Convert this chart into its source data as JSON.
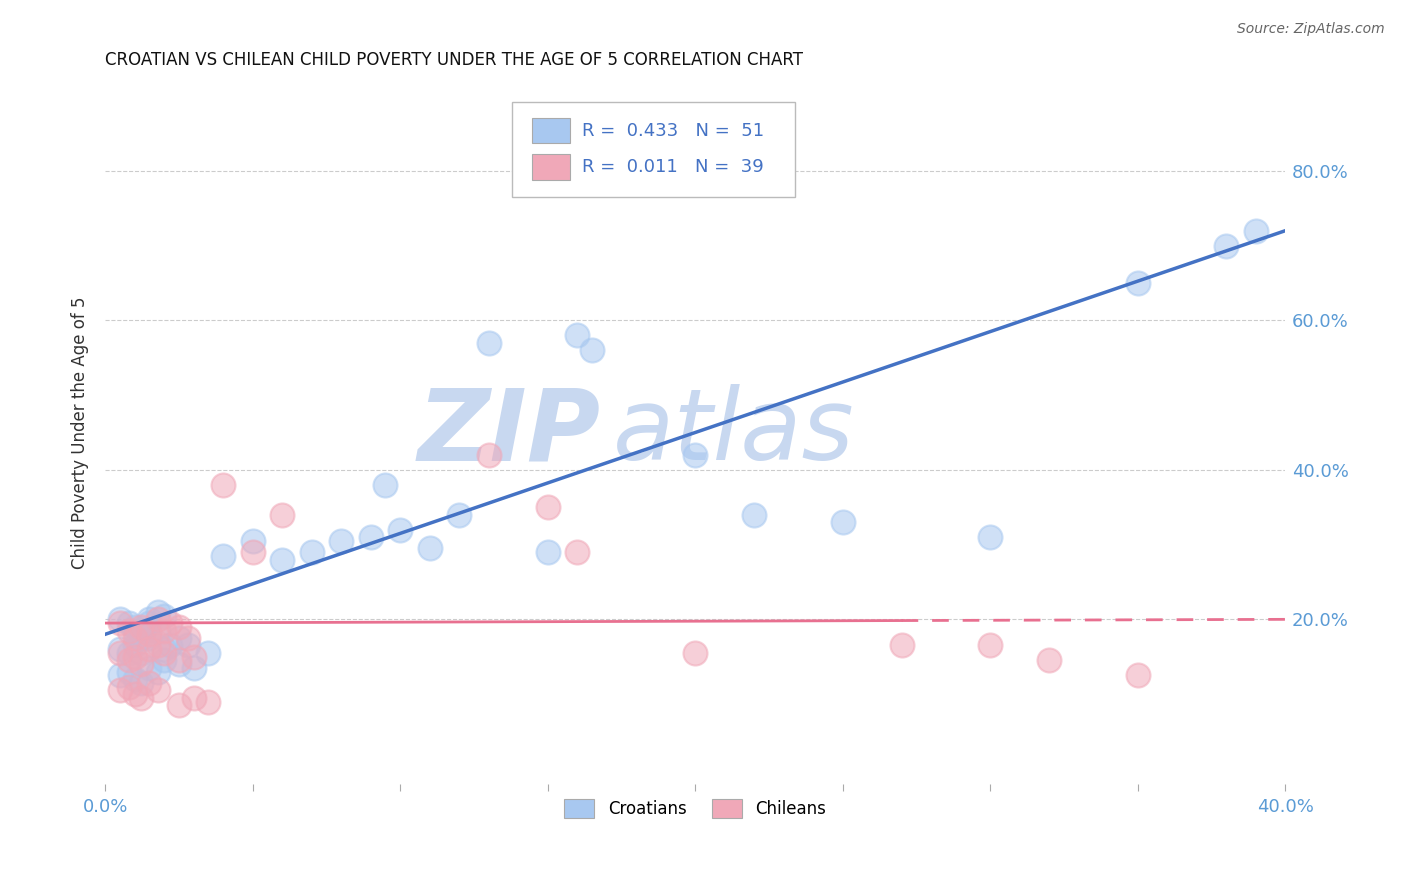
{
  "title": "CROATIAN VS CHILEAN CHILD POVERTY UNDER THE AGE OF 5 CORRELATION CHART",
  "source": "Source: ZipAtlas.com",
  "ylabel": "Child Poverty Under the Age of 5",
  "xlim": [
    0.0,
    0.4
  ],
  "ylim": [
    -0.02,
    0.92
  ],
  "xticks": [
    0.0,
    0.05,
    0.1,
    0.15,
    0.2,
    0.25,
    0.3,
    0.35,
    0.4
  ],
  "yticks": [
    0.2,
    0.4,
    0.6,
    0.8
  ],
  "ytick_labels": [
    "20.0%",
    "40.0%",
    "60.0%",
    "80.0%"
  ],
  "xtick_labels": [
    "0.0%",
    "",
    "",
    "",
    "",
    "",
    "",
    "",
    "40.0%"
  ],
  "croatian_R": 0.433,
  "croatian_N": 51,
  "chilean_R": 0.011,
  "chilean_N": 39,
  "croatian_color": "#a8c8f0",
  "chilean_color": "#f0a8b8",
  "croatian_line_color": "#4472c4",
  "chilean_line_color": "#e87090",
  "watermark_zip": "ZIP",
  "watermark_atlas": "atlas",
  "watermark_color": "#c8d8f0",
  "background_color": "#ffffff",
  "grid_color": "#cccccc",
  "tick_color": "#5b9bd5",
  "croatian_scatter_x": [
    0.005,
    0.008,
    0.01,
    0.01,
    0.012,
    0.013,
    0.015,
    0.015,
    0.018,
    0.02,
    0.005,
    0.008,
    0.01,
    0.012,
    0.015,
    0.018,
    0.02,
    0.022,
    0.025,
    0.028,
    0.005,
    0.008,
    0.01,
    0.012,
    0.015,
    0.018,
    0.02,
    0.025,
    0.03,
    0.035,
    0.04,
    0.05,
    0.06,
    0.07,
    0.08,
    0.09,
    0.1,
    0.11,
    0.12,
    0.15,
    0.095,
    0.13,
    0.16,
    0.165,
    0.2,
    0.22,
    0.25,
    0.3,
    0.35,
    0.38,
    0.39
  ],
  "croatian_scatter_y": [
    0.2,
    0.195,
    0.185,
    0.19,
    0.175,
    0.185,
    0.2,
    0.195,
    0.21,
    0.205,
    0.16,
    0.155,
    0.165,
    0.155,
    0.175,
    0.185,
    0.16,
    0.165,
    0.175,
    0.165,
    0.125,
    0.13,
    0.12,
    0.115,
    0.135,
    0.13,
    0.145,
    0.14,
    0.135,
    0.155,
    0.285,
    0.305,
    0.28,
    0.29,
    0.305,
    0.31,
    0.32,
    0.295,
    0.34,
    0.29,
    0.38,
    0.57,
    0.58,
    0.56,
    0.42,
    0.34,
    0.33,
    0.31,
    0.65,
    0.7,
    0.72
  ],
  "chilean_scatter_x": [
    0.005,
    0.008,
    0.01,
    0.012,
    0.015,
    0.018,
    0.02,
    0.022,
    0.025,
    0.028,
    0.005,
    0.008,
    0.01,
    0.012,
    0.015,
    0.018,
    0.02,
    0.025,
    0.03,
    0.005,
    0.008,
    0.01,
    0.012,
    0.015,
    0.018,
    0.025,
    0.03,
    0.035,
    0.04,
    0.05,
    0.06,
    0.13,
    0.15,
    0.16,
    0.2,
    0.27,
    0.3,
    0.32,
    0.35
  ],
  "chilean_scatter_y": [
    0.195,
    0.185,
    0.175,
    0.19,
    0.18,
    0.2,
    0.185,
    0.195,
    0.19,
    0.175,
    0.155,
    0.145,
    0.15,
    0.14,
    0.16,
    0.165,
    0.155,
    0.145,
    0.15,
    0.105,
    0.11,
    0.1,
    0.095,
    0.115,
    0.105,
    0.085,
    0.095,
    0.09,
    0.38,
    0.29,
    0.34,
    0.42,
    0.35,
    0.29,
    0.155,
    0.165,
    0.165,
    0.145,
    0.125
  ]
}
